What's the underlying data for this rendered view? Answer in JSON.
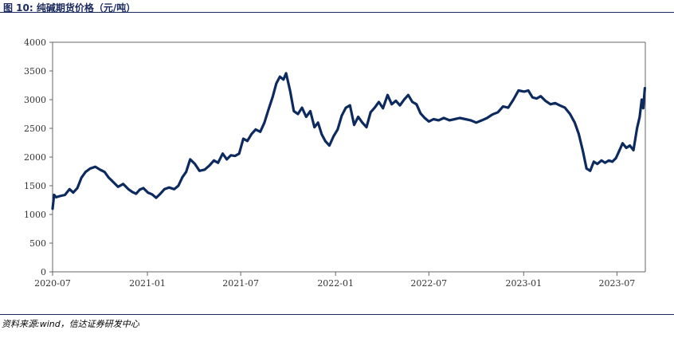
{
  "figure": {
    "title": "图 10:  纯碱期货价格（元/吨）",
    "source": "资料来源:wind，信达证券研发中心"
  },
  "chart_data": {
    "type": "line",
    "title": "图 10:  纯碱期货价格（元/吨）",
    "xlabel": "",
    "ylabel": "",
    "ylim": [
      0,
      4000
    ],
    "yticks": [
      "0",
      "500",
      "1000",
      "1500",
      "2000",
      "2500",
      "3000",
      "3500",
      "4000"
    ],
    "xlim": [
      "2020-07-01",
      "2023-08-25"
    ],
    "xticks": [
      "2020-07",
      "2021-01",
      "2021-07",
      "2022-01",
      "2022-07",
      "2023-01",
      "2023-07"
    ],
    "grid": false,
    "legend": "none",
    "colors": {
      "line": "#0d2a5e",
      "axis": "#666666"
    },
    "series": [
      {
        "x": [
          "2020-07-01",
          "2020-07-04",
          "2020-07-08",
          "2020-07-15",
          "2020-07-25",
          "2020-08-03",
          "2020-08-10",
          "2020-08-18",
          "2020-08-26",
          "2020-09-03",
          "2020-09-12",
          "2020-09-22",
          "2020-10-01",
          "2020-10-10",
          "2020-10-18",
          "2020-10-25",
          "2020-11-05",
          "2020-11-15",
          "2020-11-25",
          "2020-12-03",
          "2020-12-10",
          "2020-12-17",
          "2020-12-24",
          "2021-01-02",
          "2021-01-10",
          "2021-01-18",
          "2021-01-26",
          "2021-02-03",
          "2021-02-12",
          "2021-02-22",
          "2021-03-02",
          "2021-03-10",
          "2021-03-17",
          "2021-03-25",
          "2021-04-03",
          "2021-04-12",
          "2021-04-22",
          "2021-05-01",
          "2021-05-10",
          "2021-05-18",
          "2021-05-27",
          "2021-06-04",
          "2021-06-12",
          "2021-06-20",
          "2021-06-28",
          "2021-07-06",
          "2021-07-14",
          "2021-07-22",
          "2021-07-30",
          "2021-08-08",
          "2021-08-16",
          "2021-08-24",
          "2021-09-01",
          "2021-09-08",
          "2021-09-15",
          "2021-09-22",
          "2021-09-27",
          "2021-10-05",
          "2021-10-12",
          "2021-10-20",
          "2021-10-28",
          "2021-11-05",
          "2021-11-13",
          "2021-11-21",
          "2021-11-28",
          "2021-12-05",
          "2021-12-12",
          "2021-12-20",
          "2021-12-28",
          "2022-01-05",
          "2022-01-13",
          "2022-01-21",
          "2022-01-29",
          "2022-02-06",
          "2022-02-14",
          "2022-02-22",
          "2022-03-02",
          "2022-03-10",
          "2022-03-18",
          "2022-03-26",
          "2022-04-03",
          "2022-04-12",
          "2022-04-20",
          "2022-04-28",
          "2022-05-06",
          "2022-05-14",
          "2022-05-22",
          "2022-05-30",
          "2022-06-07",
          "2022-06-15",
          "2022-06-23",
          "2022-07-01",
          "2022-07-10",
          "2022-07-20",
          "2022-07-30",
          "2022-08-10",
          "2022-08-20",
          "2022-08-30",
          "2022-09-10",
          "2022-09-20",
          "2022-10-01",
          "2022-10-12",
          "2022-10-22",
          "2022-11-01",
          "2022-11-12",
          "2022-11-22",
          "2022-12-02",
          "2022-12-12",
          "2022-12-22",
          "2023-01-02",
          "2023-01-10",
          "2023-01-18",
          "2023-01-26",
          "2023-02-03",
          "2023-02-12",
          "2023-02-22",
          "2023-03-03",
          "2023-03-12",
          "2023-03-22",
          "2023-04-01",
          "2023-04-10",
          "2023-04-18",
          "2023-04-26",
          "2023-05-03",
          "2023-05-10",
          "2023-05-17",
          "2023-05-24",
          "2023-06-01",
          "2023-06-08",
          "2023-06-15",
          "2023-06-22",
          "2023-06-29",
          "2023-07-05",
          "2023-07-12",
          "2023-07-19",
          "2023-07-26",
          "2023-08-02",
          "2023-08-09",
          "2023-08-14",
          "2023-08-18",
          "2023-08-21",
          "2023-08-24"
        ],
        "values": [
          1100,
          1340,
          1300,
          1320,
          1340,
          1440,
          1380,
          1460,
          1640,
          1740,
          1800,
          1830,
          1780,
          1740,
          1640,
          1580,
          1480,
          1530,
          1440,
          1390,
          1360,
          1430,
          1460,
          1380,
          1350,
          1290,
          1360,
          1440,
          1470,
          1440,
          1500,
          1650,
          1740,
          1960,
          1880,
          1760,
          1780,
          1850,
          1940,
          1900,
          2060,
          1960,
          2030,
          2020,
          2060,
          2320,
          2280,
          2400,
          2480,
          2440,
          2600,
          2830,
          3050,
          3280,
          3400,
          3350,
          3460,
          3150,
          2800,
          2750,
          2860,
          2700,
          2800,
          2520,
          2600,
          2400,
          2280,
          2200,
          2360,
          2480,
          2720,
          2860,
          2900,
          2560,
          2700,
          2600,
          2520,
          2780,
          2860,
          2960,
          2850,
          3080,
          2920,
          2980,
          2900,
          3000,
          3080,
          2960,
          2920,
          2760,
          2680,
          2620,
          2660,
          2640,
          2680,
          2640,
          2660,
          2680,
          2660,
          2640,
          2600,
          2640,
          2680,
          2740,
          2780,
          2880,
          2860,
          3000,
          3160,
          3140,
          3160,
          3040,
          3020,
          3060,
          2980,
          2920,
          2940,
          2900,
          2860,
          2750,
          2600,
          2400,
          2100,
          1800,
          1760,
          1920,
          1880,
          1940,
          1900,
          1940,
          1920,
          1980,
          2100,
          2240,
          2160,
          2200,
          2120,
          2500,
          2700,
          3000,
          2850,
          3200
        ]
      }
    ]
  }
}
